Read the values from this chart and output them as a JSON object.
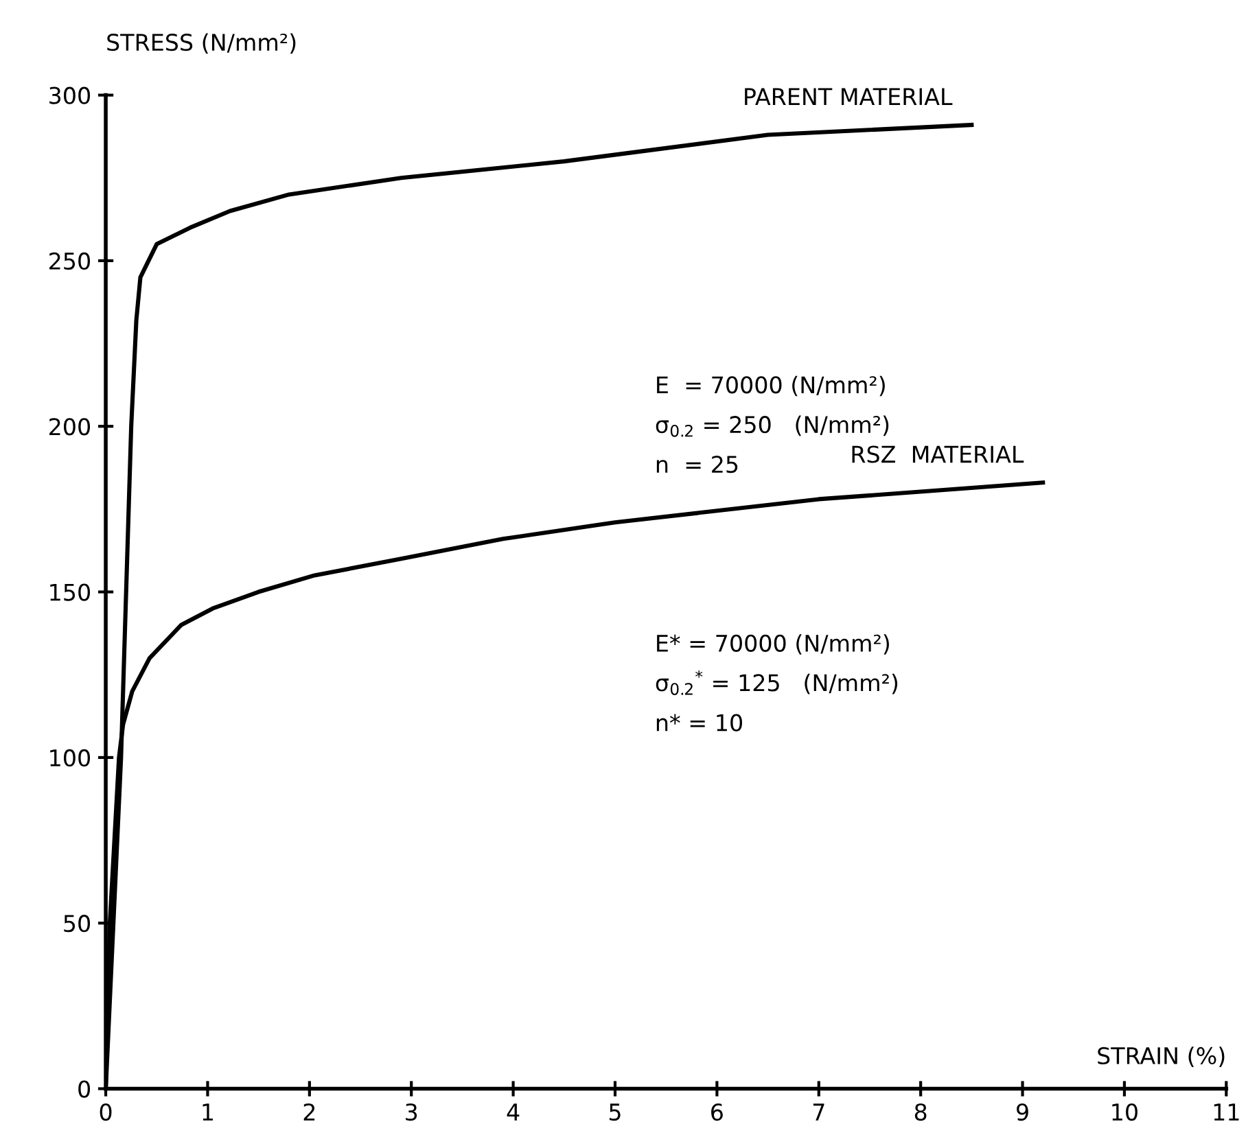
{
  "chart_data": {
    "type": "line",
    "xlabel": "STRAIN (%)",
    "ylabel": "STRESS (N/mm²)",
    "xlim": [
      0,
      11
    ],
    "ylim": [
      0,
      300
    ],
    "xticks": [
      0,
      1,
      2,
      3,
      4,
      5,
      6,
      7,
      8,
      9,
      10,
      11
    ],
    "yticks": [
      0,
      50,
      100,
      150,
      200,
      250,
      300
    ],
    "grid": false,
    "legend": false,
    "marker": "none",
    "line_style": "solid",
    "series": [
      {
        "name": "PARENT MATERIAL",
        "color": "#000000",
        "x": [
          0,
          0.15,
          0.2,
          0.25,
          0.3,
          0.34,
          0.5,
          0.83,
          1.22,
          1.8,
          2.9,
          4.5,
          6.5,
          8.5
        ],
        "values": [
          0,
          100,
          150,
          200,
          232,
          245,
          255,
          260,
          265,
          270,
          275,
          280,
          288,
          291
        ]
      },
      {
        "name": "RSZ  MATERIAL",
        "color": "#000000",
        "x": [
          0,
          0.04,
          0.13,
          0.17,
          0.26,
          0.43,
          0.74,
          1.05,
          1.5,
          2.05,
          2.9,
          3.9,
          5,
          7,
          9.2
        ],
        "values": [
          0,
          50,
          100,
          110,
          120,
          130,
          140,
          145,
          150,
          155,
          160,
          166,
          171,
          178,
          183
        ]
      }
    ],
    "annotations": [
      "E  = 70000 (N/mm²)",
      "σ$_{0.2}$ = 250   (N/mm²)",
      "n  = 25",
      "E* = 70000 (N/mm²)",
      "σ$_{0.2}$$^{*}$ = 125   (N/mm²)",
      "n* = 10"
    ]
  }
}
